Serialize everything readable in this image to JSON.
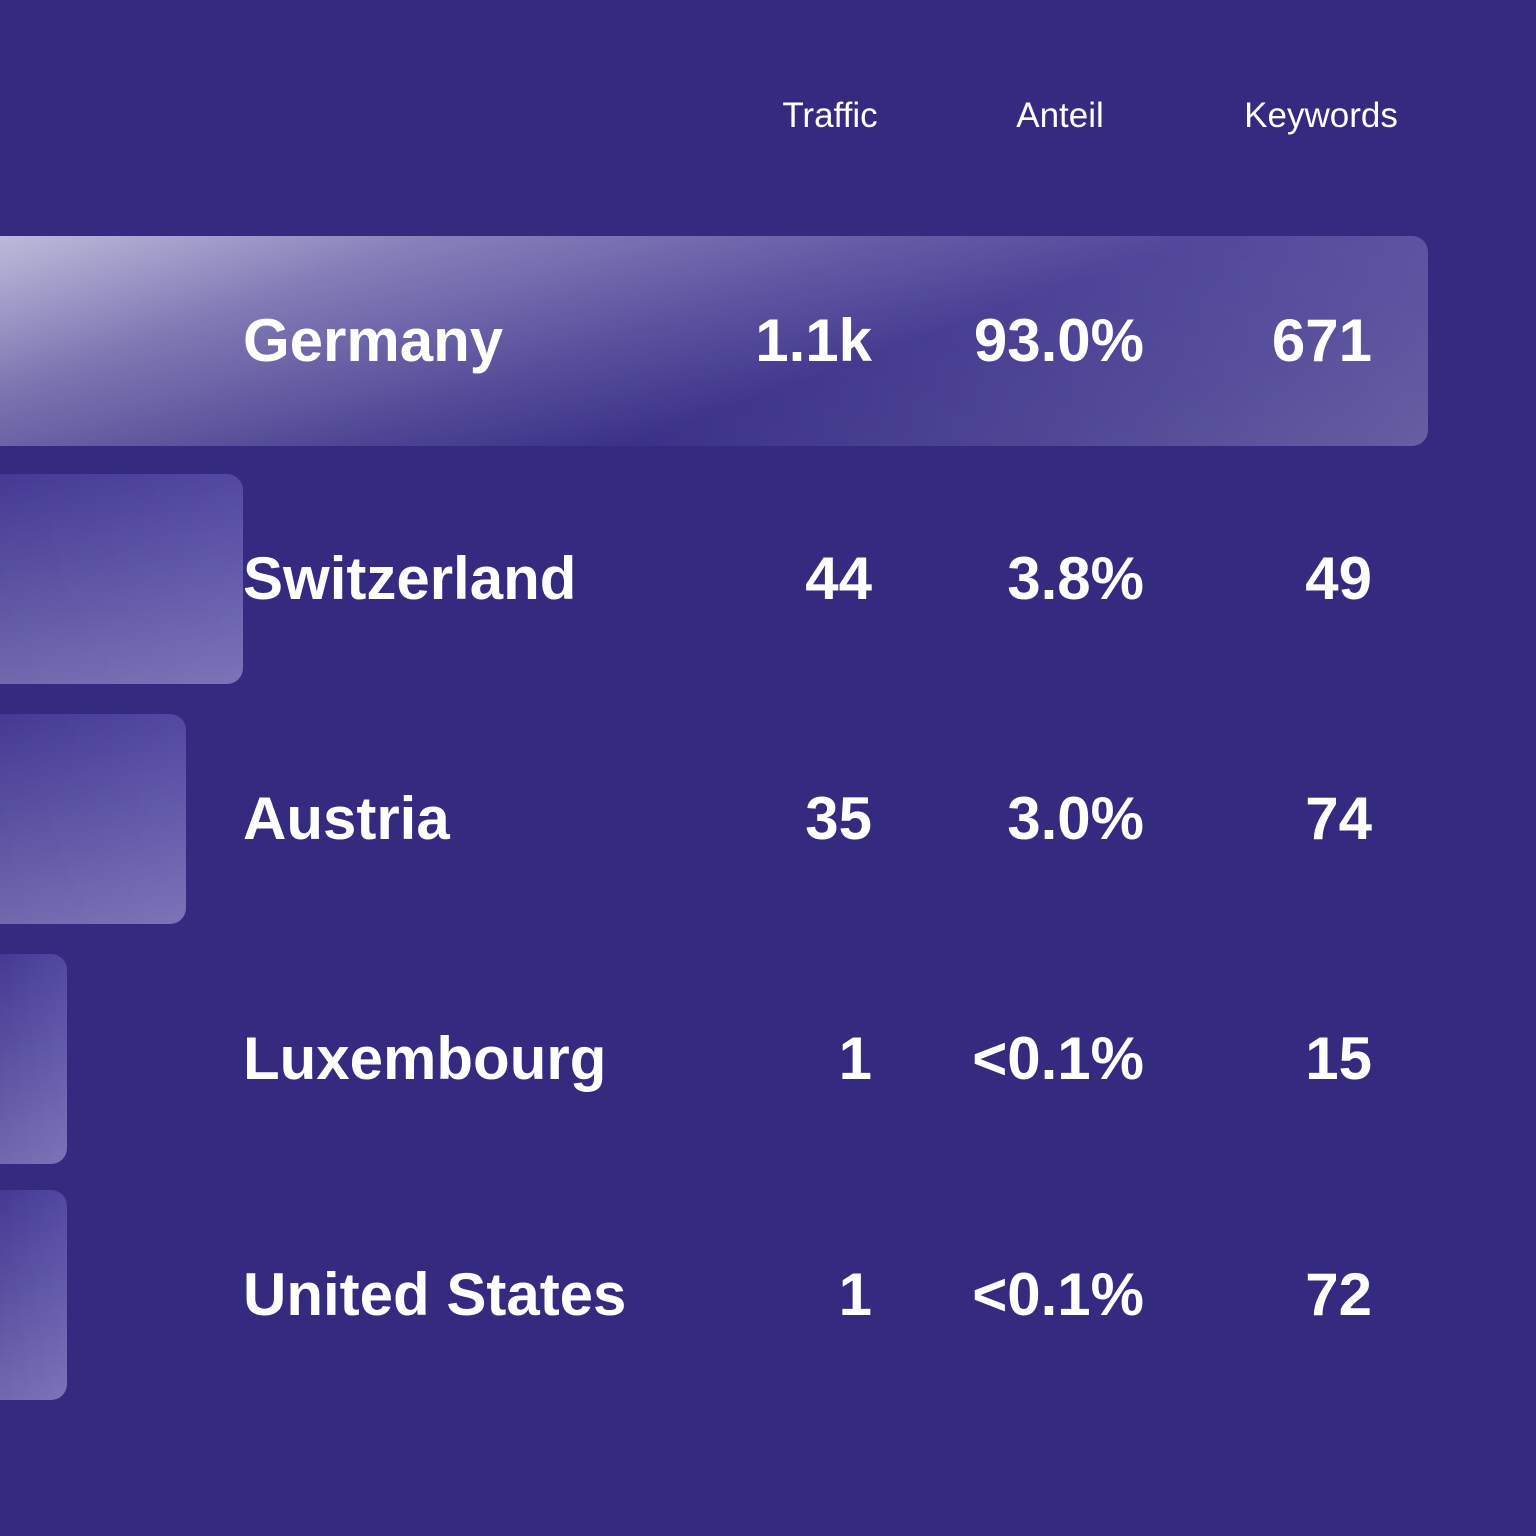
{
  "colors": {
    "background": "#342b80",
    "text": "#ffffff"
  },
  "headers": {
    "traffic": "Traffic",
    "anteil": "Anteil",
    "keywords": "Keywords"
  },
  "chart_data": {
    "type": "bar",
    "categories": [
      "Germany",
      "Switzerland",
      "Austria",
      "Luxembourg",
      "United States"
    ],
    "series": [
      {
        "name": "Traffic",
        "values": [
          1100,
          44,
          35,
          1,
          1
        ],
        "labels": [
          "1.1k",
          "44",
          "35",
          "1",
          "1"
        ]
      },
      {
        "name": "Anteil",
        "values": [
          93.0,
          3.8,
          3.0,
          0.1,
          0.1
        ],
        "labels": [
          "93.0%",
          "3.8%",
          "3.0%",
          "<0.1%",
          "<0.1%"
        ]
      },
      {
        "name": "Keywords",
        "values": [
          671,
          49,
          74,
          15,
          72
        ],
        "labels": [
          "671",
          "49",
          "74",
          "15",
          "72"
        ]
      }
    ],
    "bar_fraction": [
      1.0,
      0.17,
      0.13,
      0.047,
      0.047
    ]
  },
  "rows": [
    {
      "country": "Germany",
      "traffic": "1.1k",
      "anteil": "93.0%",
      "keywords": "671"
    },
    {
      "country": "Switzerland",
      "traffic": "44",
      "anteil": "3.8%",
      "keywords": "49"
    },
    {
      "country": "Austria",
      "traffic": "35",
      "anteil": "3.0%",
      "keywords": "74"
    },
    {
      "country": "Luxembourg",
      "traffic": "1",
      "anteil": "<0.1%",
      "keywords": "15"
    },
    {
      "country": "United States",
      "traffic": "1",
      "anteil": "<0.1%",
      "keywords": "72"
    }
  ]
}
